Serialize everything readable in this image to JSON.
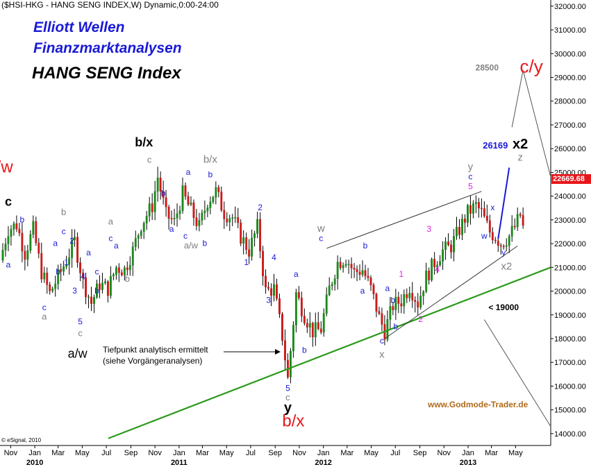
{
  "header": {
    "title": "($HSI-HKG - HANG SENG INDEX,W) Dynamic,0:00-24:00",
    "heading1": "Elliott Wellen",
    "heading2": "Finanzmarktanalysen",
    "heading3": "HANG SENG Index"
  },
  "footer": {
    "watermark": "www.Godmode-Trader.de",
    "copyright": "© eSignal, 2010"
  },
  "notes": {
    "bottom_line1": "Tiefpunkt analytisch ermittelt",
    "bottom_line2": "(siehe Vorgängeranalysen)"
  },
  "colors": {
    "candle_up": "#1a8a1a",
    "candle_down": "#cc1a1a",
    "trendline": "#2a9a1a",
    "wave_blue": "#1a1ad6",
    "wave_red": "#e8161a",
    "wave_magenta": "#e020e0",
    "wave_gray": "#808080",
    "price_box": "#e8161a"
  },
  "chart_data": {
    "type": "candlestick",
    "title": "($HSI-HKG - HANG SENG INDEX,W) Dynamic,0:00-24:00",
    "ylim": [
      13500,
      32200
    ],
    "y_axis_side": "right",
    "grid": false,
    "current_price": "22669.68",
    "y_ticks": [
      "14000.00",
      "15000.00",
      "16000.00",
      "17000.00",
      "18000.00",
      "19000.00",
      "20000.00",
      "21000.00",
      "22000.00",
      "23000.00",
      "24000.00",
      "25000.00",
      "26000.00",
      "27000.00",
      "28000.00",
      "29000.00",
      "30000.00",
      "31000.00",
      "32000.00"
    ],
    "x_ticks": [
      {
        "label": "Nov",
        "date": "2009-11"
      },
      {
        "label": "Jan",
        "date": "2010-01"
      },
      {
        "label": "Mar",
        "date": "2010-03"
      },
      {
        "label": "May",
        "date": "2010-05"
      },
      {
        "label": "Jul",
        "date": "2010-07"
      },
      {
        "label": "Sep",
        "date": "2010-09"
      },
      {
        "label": "Nov",
        "date": "2010-11"
      },
      {
        "label": "Jan",
        "date": "2011-01"
      },
      {
        "label": "Mar",
        "date": "2011-03"
      },
      {
        "label": "May",
        "date": "2011-05"
      },
      {
        "label": "Jul",
        "date": "2011-07"
      },
      {
        "label": "Sep",
        "date": "2011-09"
      },
      {
        "label": "Nov",
        "date": "2011-11"
      },
      {
        "label": "Jan",
        "date": "2012-01"
      },
      {
        "label": "Mar",
        "date": "2012-03"
      },
      {
        "label": "May",
        "date": "2012-05"
      },
      {
        "label": "Jul",
        "date": "2012-07"
      },
      {
        "label": "Sep",
        "date": "2012-09"
      },
      {
        "label": "Nov",
        "date": "2012-11"
      },
      {
        "label": "Jan",
        "date": "2013-01"
      },
      {
        "label": "Mar",
        "date": "2013-03"
      },
      {
        "label": "May",
        "date": "2013-05"
      }
    ],
    "x_year_labels": [
      {
        "label": "2010",
        "date": "2010-01"
      },
      {
        "label": "2011",
        "date": "2011-01"
      },
      {
        "label": "2012",
        "date": "2012-01"
      },
      {
        "label": "2013",
        "date": "2013-01"
      }
    ],
    "close_path": [
      [
        "2009-10-05",
        21300
      ],
      [
        "2009-10-26",
        22600
      ],
      [
        "2009-11-16",
        22800
      ],
      [
        "2009-12-07",
        21600
      ],
      [
        "2009-12-28",
        22600
      ],
      [
        "2010-01-18",
        20800
      ],
      [
        "2010-02-08",
        19900
      ],
      [
        "2010-03-01",
        20600
      ],
      [
        "2010-03-22",
        21300
      ],
      [
        "2010-04-12",
        22100
      ],
      [
        "2010-05-03",
        20400
      ],
      [
        "2010-05-24",
        19500
      ],
      [
        "2010-06-14",
        20300
      ],
      [
        "2010-07-05",
        20100
      ],
      [
        "2010-07-26",
        21000
      ],
      [
        "2010-08-16",
        20900
      ],
      [
        "2010-09-06",
        21700
      ],
      [
        "2010-09-27",
        22800
      ],
      [
        "2010-10-25",
        23600
      ],
      [
        "2010-11-08",
        24800
      ],
      [
        "2010-11-29",
        23200
      ],
      [
        "2010-12-20",
        22900
      ],
      [
        "2011-01-10",
        24100
      ],
      [
        "2011-01-31",
        23400
      ],
      [
        "2011-02-21",
        22700
      ],
      [
        "2011-03-14",
        23800
      ],
      [
        "2011-04-04",
        24200
      ],
      [
        "2011-04-25",
        23300
      ],
      [
        "2011-05-16",
        23100
      ],
      [
        "2011-06-06",
        22300
      ],
      [
        "2011-06-27",
        21700
      ],
      [
        "2011-07-18",
        22700
      ],
      [
        "2011-08-08",
        20000
      ],
      [
        "2011-08-29",
        20100
      ],
      [
        "2011-09-19",
        18100
      ],
      [
        "2011-10-03",
        16300
      ],
      [
        "2011-10-24",
        19900
      ],
      [
        "2011-11-14",
        19000
      ],
      [
        "2011-12-05",
        18300
      ],
      [
        "2011-12-26",
        18400
      ],
      [
        "2012-01-16",
        20100
      ],
      [
        "2012-02-06",
        21200
      ],
      [
        "2012-02-27",
        21400
      ],
      [
        "2012-03-19",
        20800
      ],
      [
        "2012-04-09",
        20900
      ],
      [
        "2012-04-30",
        20100
      ],
      [
        "2012-05-21",
        18900
      ],
      [
        "2012-06-04",
        18300
      ],
      [
        "2012-06-25",
        19400
      ],
      [
        "2012-07-16",
        19600
      ],
      [
        "2012-08-06",
        20200
      ],
      [
        "2012-08-27",
        19500
      ],
      [
        "2012-09-17",
        20600
      ],
      [
        "2012-10-08",
        21200
      ],
      [
        "2012-10-29",
        21700
      ],
      [
        "2012-11-19",
        21900
      ],
      [
        "2012-12-10",
        22600
      ],
      [
        "2012-12-31",
        23300
      ],
      [
        "2013-01-21",
        23600
      ],
      [
        "2013-02-04",
        23300
      ],
      [
        "2013-02-25",
        22500
      ],
      [
        "2013-03-11",
        22300
      ],
      [
        "2013-03-25",
        22000
      ],
      [
        "2013-04-15",
        22300
      ],
      [
        "2013-04-29",
        22700
      ],
      [
        "2013-05-13",
        23200
      ],
      [
        "2013-05-20",
        22670
      ]
    ],
    "trendlines": [
      {
        "name": "green-support",
        "color": "#2a9a1a",
        "from": [
          "2010-07-06",
          13800
        ],
        "to": [
          "2013-07-29",
          21000
        ]
      },
      {
        "name": "upper-channel",
        "color": "#333333",
        "from": [
          "2012-01-09",
          21800
        ],
        "to": [
          "2013-02-04",
          24200
        ]
      },
      {
        "name": "lower-channel",
        "color": "#333333",
        "from": [
          "2012-06-04",
          18000
        ],
        "to": [
          "2013-05-06",
          21900
        ]
      },
      {
        "name": "projection-blue",
        "color": "#1a1ad6",
        "from": [
          "2013-03-18",
          22200
        ],
        "to": [
          "2013-04-15",
          25200
        ]
      },
      {
        "name": "forecast-1",
        "color": "#555555",
        "from": [
          "2013-04-22",
          26900
        ],
        "to": [
          "2013-05-20",
          29300
        ]
      },
      {
        "name": "forecast-2",
        "color": "#555555",
        "from": [
          "2013-05-20",
          29300
        ],
        "to": [
          "2013-07-29",
          24800
        ]
      },
      {
        "name": "forecast-3",
        "color": "#555555",
        "from": [
          "2013-02-11",
          18800
        ],
        "to": [
          "2013-07-29",
          14300
        ]
      }
    ],
    "annotations": [
      {
        "text": "a/w",
        "date": "2009-10-05",
        "y": 25000,
        "color": "#e8161a",
        "size": 24,
        "weight": "normal"
      },
      {
        "text": "c",
        "date": "2009-10-26",
        "y": 23600,
        "color": "#000000",
        "size": 18,
        "weight": "bold"
      },
      {
        "text": "b/x",
        "date": "2010-10-04",
        "y": 26100,
        "color": "#000000",
        "size": 18,
        "weight": "bold"
      },
      {
        "text": "c",
        "date": "2010-10-18",
        "y": 25400,
        "color": "#808080",
        "size": 13,
        "weight": "normal"
      },
      {
        "text": "b/x",
        "date": "2011-03-21",
        "y": 25400,
        "color": "#808080",
        "size": 15,
        "weight": "normal"
      },
      {
        "text": "b",
        "date": "2011-03-21",
        "y": 24800,
        "color": "#1a1ad6",
        "size": 12,
        "weight": "normal"
      },
      {
        "text": "a/w",
        "date": "2010-04-19",
        "y": 17200,
        "color": "#000000",
        "size": 18,
        "weight": "normal"
      },
      {
        "text": "c",
        "date": "2010-04-26",
        "y": 18100,
        "color": "#808080",
        "size": 13,
        "weight": "normal"
      },
      {
        "text": "5",
        "date": "2010-04-26",
        "y": 18600,
        "color": "#1a1ad6",
        "size": 12,
        "weight": "normal"
      },
      {
        "text": "y",
        "date": "2011-10-03",
        "y": 14900,
        "color": "#000000",
        "size": 20,
        "weight": "bold"
      },
      {
        "text": "c",
        "date": "2011-10-03",
        "y": 15400,
        "color": "#808080",
        "size": 13,
        "weight": "normal"
      },
      {
        "text": "5",
        "date": "2011-10-03",
        "y": 15800,
        "color": "#1a1ad6",
        "size": 12,
        "weight": "normal"
      },
      {
        "text": "b/x",
        "date": "2011-10-17",
        "y": 14300,
        "color": "#e8161a",
        "size": 24,
        "weight": "normal"
      },
      {
        "text": "w",
        "date": "2011-12-26",
        "y": 22500,
        "color": "#808080",
        "size": 15,
        "weight": "normal"
      },
      {
        "text": "c",
        "date": "2011-12-26",
        "y": 22100,
        "color": "#1a1ad6",
        "size": 12,
        "weight": "normal"
      },
      {
        "text": "x",
        "date": "2012-05-28",
        "y": 17200,
        "color": "#808080",
        "size": 15,
        "weight": "normal"
      },
      {
        "text": "c",
        "date": "2012-05-28",
        "y": 17800,
        "color": "#1a1ad6",
        "size": 12,
        "weight": "normal"
      },
      {
        "text": "y",
        "date": "2013-01-07",
        "y": 25100,
        "color": "#808080",
        "size": 15,
        "weight": "normal"
      },
      {
        "text": "c",
        "date": "2013-01-07",
        "y": 24700,
        "color": "#1a1ad6",
        "size": 12,
        "weight": "normal"
      },
      {
        "text": "5",
        "date": "2013-01-07",
        "y": 24300,
        "color": "#e020e0",
        "size": 12,
        "weight": "normal"
      },
      {
        "text": "x2",
        "date": "2013-04-08",
        "y": 20900,
        "color": "#808080",
        "size": 15,
        "weight": "normal"
      },
      {
        "text": "y",
        "date": "2013-04-01",
        "y": 21500,
        "color": "#1a1ad6",
        "size": 12,
        "weight": "normal"
      },
      {
        "text": "x2",
        "date": "2013-05-13",
        "y": 26000,
        "color": "#000000",
        "size": 20,
        "weight": "bold"
      },
      {
        "text": "z",
        "date": "2013-05-13",
        "y": 25500,
        "color": "#808080",
        "size": 15,
        "weight": "normal"
      },
      {
        "text": "26169",
        "date": "2013-03-11",
        "y": 26000,
        "color": "#1a1ad6",
        "size": 13,
        "weight": "bold"
      },
      {
        "text": "c/y",
        "date": "2013-06-10",
        "y": 29200,
        "color": "#e8161a",
        "size": 26,
        "weight": "normal"
      },
      {
        "text": "28500",
        "date": "2013-02-18",
        "y": 29300,
        "color": "#808080",
        "size": 12,
        "weight": "bold"
      },
      {
        "text": "< 19000",
        "date": "2013-04-01",
        "y": 19200,
        "color": "#000000",
        "size": 12,
        "weight": "bold"
      },
      {
        "text": "a",
        "date": "2009-10-26",
        "y": 21000,
        "color": "#1a1ad6",
        "size": 12,
        "weight": "normal"
      },
      {
        "text": "b",
        "date": "2009-11-30",
        "y": 22900,
        "color": "#1a1ad6",
        "size": 12,
        "weight": "normal"
      },
      {
        "text": "c",
        "date": "2010-01-25",
        "y": 19200,
        "color": "#1a1ad6",
        "size": 12,
        "weight": "normal"
      },
      {
        "text": "a",
        "date": "2010-01-25",
        "y": 18800,
        "color": "#808080",
        "size": 13,
        "weight": "normal"
      },
      {
        "text": "a",
        "date": "2010-02-22",
        "y": 21900,
        "color": "#1a1ad6",
        "size": 12,
        "weight": "normal"
      },
      {
        "text": "b",
        "date": "2010-03-01",
        "y": 20700,
        "color": "#1a1ad6",
        "size": 12,
        "weight": "normal"
      },
      {
        "text": "c",
        "date": "2010-03-15",
        "y": 22400,
        "color": "#1a1ad6",
        "size": 12,
        "weight": "normal"
      },
      {
        "text": "b",
        "date": "2010-03-15",
        "y": 23200,
        "color": "#808080",
        "size": 13,
        "weight": "normal"
      },
      {
        "text": "1",
        "date": "2010-03-22",
        "y": 21100,
        "color": "#1a1ad6",
        "size": 12,
        "weight": "normal"
      },
      {
        "text": "2",
        "date": "2010-04-05",
        "y": 22000,
        "color": "#1a1ad6",
        "size": 12,
        "weight": "normal"
      },
      {
        "text": "3",
        "date": "2010-04-12",
        "y": 19900,
        "color": "#1a1ad6",
        "size": 12,
        "weight": "normal"
      },
      {
        "text": "4",
        "date": "2010-05-03",
        "y": 20500,
        "color": "#1a1ad6",
        "size": 12,
        "weight": "normal"
      },
      {
        "text": "a",
        "date": "2010-05-17",
        "y": 21500,
        "color": "#1a1ad6",
        "size": 12,
        "weight": "normal"
      },
      {
        "text": "b",
        "date": "2010-06-07",
        "y": 19900,
        "color": "#1a1ad6",
        "size": 12,
        "weight": "normal"
      },
      {
        "text": "c",
        "date": "2010-06-07",
        "y": 20700,
        "color": "#1a1ad6",
        "size": 12,
        "weight": "normal"
      },
      {
        "text": "a",
        "date": "2010-07-26",
        "y": 21800,
        "color": "#1a1ad6",
        "size": 12,
        "weight": "normal"
      },
      {
        "text": "b",
        "date": "2010-08-23",
        "y": 20400,
        "color": "#808080",
        "size": 13,
        "weight": "normal"
      },
      {
        "text": "a",
        "date": "2010-07-12",
        "y": 22800,
        "color": "#808080",
        "size": 13,
        "weight": "normal"
      },
      {
        "text": "c",
        "date": "2010-07-12",
        "y": 22100,
        "color": "#1a1ad6",
        "size": 12,
        "weight": "normal"
      },
      {
        "text": "a",
        "date": "2011-01-24",
        "y": 24900,
        "color": "#1a1ad6",
        "size": 12,
        "weight": "normal"
      },
      {
        "text": "b",
        "date": "2010-11-22",
        "y": 24000,
        "color": "#1a1ad6",
        "size": 12,
        "weight": "normal"
      },
      {
        "text": "a",
        "date": "2010-12-13",
        "y": 22500,
        "color": "#1a1ad6",
        "size": 12,
        "weight": "normal"
      },
      {
        "text": "c",
        "date": "2011-01-17",
        "y": 22200,
        "color": "#1a1ad6",
        "size": 12,
        "weight": "normal"
      },
      {
        "text": "a/w",
        "date": "2011-01-31",
        "y": 21800,
        "color": "#808080",
        "size": 13,
        "weight": "normal"
      },
      {
        "text": "b",
        "date": "2011-03-07",
        "y": 21900,
        "color": "#1a1ad6",
        "size": 12,
        "weight": "normal"
      },
      {
        "text": "1",
        "date": "2011-06-20",
        "y": 21100,
        "color": "#1a1ad6",
        "size": 12,
        "weight": "normal"
      },
      {
        "text": "2",
        "date": "2011-07-25",
        "y": 23400,
        "color": "#1a1ad6",
        "size": 12,
        "weight": "normal"
      },
      {
        "text": "3",
        "date": "2011-08-15",
        "y": 19500,
        "color": "#1a1ad6",
        "size": 12,
        "weight": "normal"
      },
      {
        "text": "4",
        "date": "2011-08-29",
        "y": 21300,
        "color": "#1a1ad6",
        "size": 12,
        "weight": "normal"
      },
      {
        "text": "a",
        "date": "2011-10-24",
        "y": 20600,
        "color": "#1a1ad6",
        "size": 12,
        "weight": "normal"
      },
      {
        "text": "b",
        "date": "2011-11-14",
        "y": 17400,
        "color": "#1a1ad6",
        "size": 12,
        "weight": "normal"
      },
      {
        "text": "a",
        "date": "2012-04-09",
        "y": 19900,
        "color": "#1a1ad6",
        "size": 12,
        "weight": "normal"
      },
      {
        "text": "b",
        "date": "2012-04-16",
        "y": 21800,
        "color": "#1a1ad6",
        "size": 12,
        "weight": "normal"
      },
      {
        "text": "b",
        "date": "2012-07-02",
        "y": 18400,
        "color": "#1a1ad6",
        "size": 12,
        "weight": "normal"
      },
      {
        "text": "a",
        "date": "2012-06-11",
        "y": 20000,
        "color": "#1a1ad6",
        "size": 12,
        "weight": "normal"
      },
      {
        "text": "b",
        "date": "2012-06-25",
        "y": 19500,
        "color": "#1a1ad6",
        "size": 12,
        "weight": "normal"
      },
      {
        "text": "1",
        "date": "2012-07-16",
        "y": 20600,
        "color": "#e020e0",
        "size": 12,
        "weight": "normal"
      },
      {
        "text": "2",
        "date": "2012-09-03",
        "y": 18700,
        "color": "#e020e0",
        "size": 12,
        "weight": "normal"
      },
      {
        "text": "3",
        "date": "2012-09-24",
        "y": 22500,
        "color": "#e020e0",
        "size": 12,
        "weight": "normal"
      },
      {
        "text": "4",
        "date": "2012-10-15",
        "y": 20800,
        "color": "#e020e0",
        "size": 12,
        "weight": "normal"
      },
      {
        "text": "w",
        "date": "2013-02-11",
        "y": 22200,
        "color": "#1a1ad6",
        "size": 12,
        "weight": "normal"
      },
      {
        "text": "x",
        "date": "2013-03-04",
        "y": 23400,
        "color": "#1a1ad6",
        "size": 12,
        "weight": "normal"
      }
    ]
  }
}
